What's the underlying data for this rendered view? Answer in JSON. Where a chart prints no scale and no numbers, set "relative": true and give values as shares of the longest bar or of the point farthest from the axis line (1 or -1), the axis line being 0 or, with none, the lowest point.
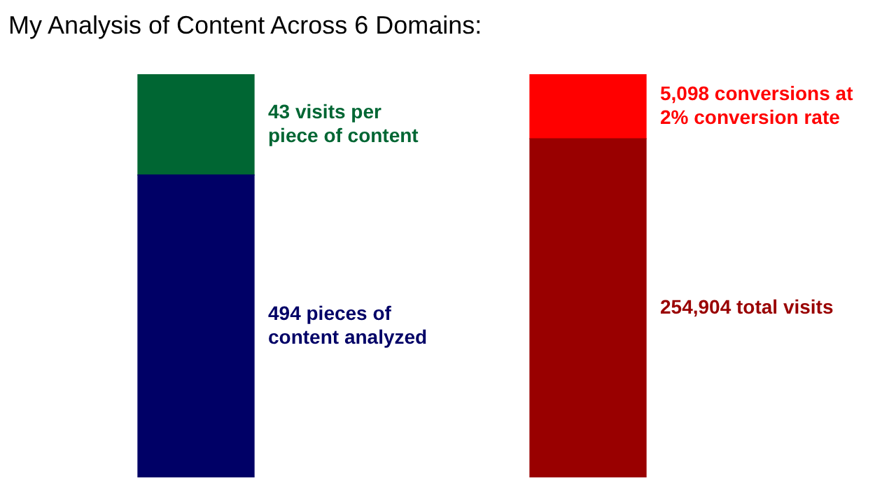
{
  "chart_data": {
    "type": "bar",
    "title": "My Analysis of Content Across 6 Domains:",
    "categories": [
      null,
      null
    ],
    "stacked": true,
    "relative": true,
    "legend": false,
    "series": [
      {
        "colors": [
          "#000066",
          "#990000"
        ],
        "values": [
          0.75,
          0.84
        ]
      },
      {
        "colors": [
          "#006633",
          "#ff0000"
        ],
        "values": [
          0.25,
          0.16
        ]
      }
    ],
    "annotations": [
      "494 pieces of\ncontent analyzed",
      "254,904 total visits",
      "43 visits per\npiece of content",
      "5,098 conversions at\n2% conversion rate"
    ]
  }
}
